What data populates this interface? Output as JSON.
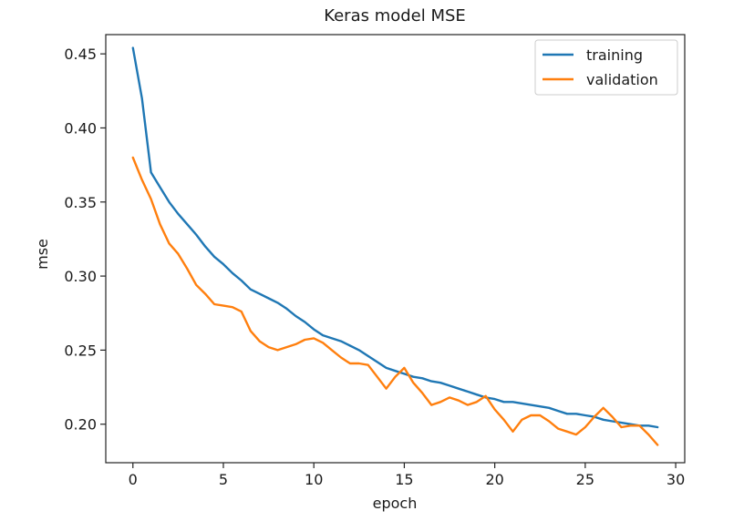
{
  "chart_data": {
    "type": "line",
    "title": "Keras model MSE",
    "xlabel": "epoch",
    "ylabel": "mse",
    "xlim": [
      -1.5,
      30.5
    ],
    "ylim": [
      0.174,
      0.463
    ],
    "xticks": [
      0,
      5,
      10,
      15,
      20,
      25,
      30
    ],
    "xtick_labels": [
      "0",
      "5",
      "10",
      "15",
      "20",
      "25",
      "30"
    ],
    "yticks": [
      0.2,
      0.25,
      0.3,
      0.35,
      0.4,
      0.45
    ],
    "ytick_labels": [
      "0.20",
      "0.25",
      "0.30",
      "0.35",
      "0.40",
      "0.45"
    ],
    "grid": false,
    "legend": {
      "position": "top-right",
      "entries": [
        "training",
        "validation"
      ]
    },
    "series": [
      {
        "name": "training",
        "color": "#1f77b4",
        "x": [
          0,
          0.5,
          1,
          1.5,
          2,
          2.5,
          3,
          3.5,
          4,
          4.5,
          5,
          5.5,
          6,
          6.5,
          7,
          7.5,
          8,
          8.5,
          9,
          9.5,
          10,
          10.5,
          11,
          11.5,
          12,
          12.5,
          13,
          13.5,
          14,
          14.5,
          15,
          15.5,
          16,
          16.5,
          17,
          17.5,
          18,
          18.5,
          19,
          19.5,
          20,
          20.5,
          21,
          21.5,
          22,
          22.5,
          23,
          23.5,
          24,
          24.5,
          25,
          25.5,
          26,
          26.5,
          27,
          27.5,
          28,
          28.5,
          29
        ],
        "y": [
          0.454,
          0.42,
          0.37,
          0.36,
          0.35,
          0.342,
          0.335,
          0.328,
          0.32,
          0.313,
          0.308,
          0.302,
          0.297,
          0.291,
          0.288,
          0.285,
          0.282,
          0.278,
          0.273,
          0.269,
          0.264,
          0.26,
          0.258,
          0.256,
          0.253,
          0.25,
          0.246,
          0.242,
          0.238,
          0.236,
          0.234,
          0.232,
          0.231,
          0.229,
          0.228,
          0.226,
          0.224,
          0.222,
          0.22,
          0.218,
          0.217,
          0.215,
          0.215,
          0.214,
          0.213,
          0.212,
          0.211,
          0.209,
          0.207,
          0.207,
          0.206,
          0.205,
          0.203,
          0.202,
          0.201,
          0.2,
          0.199,
          0.199,
          0.198
        ]
      },
      {
        "name": "validation",
        "color": "#ff7f0e",
        "x": [
          0,
          0.5,
          1,
          1.5,
          2,
          2.5,
          3,
          3.5,
          4,
          4.5,
          5,
          5.5,
          6,
          6.5,
          7,
          7.5,
          8,
          8.5,
          9,
          9.5,
          10,
          10.5,
          11,
          11.5,
          12,
          12.5,
          13,
          13.5,
          14,
          14.5,
          15,
          15.5,
          16,
          16.5,
          17,
          17.5,
          18,
          18.5,
          19,
          19.5,
          20,
          20.5,
          21,
          21.5,
          22,
          22.5,
          23,
          23.5,
          24,
          24.5,
          25,
          25.5,
          26,
          26.5,
          27,
          27.5,
          28,
          28.5,
          29
        ],
        "y": [
          0.38,
          0.365,
          0.352,
          0.335,
          0.322,
          0.315,
          0.305,
          0.294,
          0.288,
          0.281,
          0.28,
          0.279,
          0.276,
          0.263,
          0.256,
          0.252,
          0.25,
          0.252,
          0.254,
          0.257,
          0.258,
          0.255,
          0.25,
          0.245,
          0.241,
          0.241,
          0.24,
          0.232,
          0.224,
          0.232,
          0.238,
          0.228,
          0.221,
          0.213,
          0.215,
          0.218,
          0.216,
          0.213,
          0.215,
          0.219,
          0.21,
          0.203,
          0.195,
          0.203,
          0.206,
          0.206,
          0.202,
          0.197,
          0.195,
          0.193,
          0.198,
          0.205,
          0.211,
          0.205,
          0.198,
          0.199,
          0.199,
          0.193,
          0.186
        ]
      }
    ]
  }
}
